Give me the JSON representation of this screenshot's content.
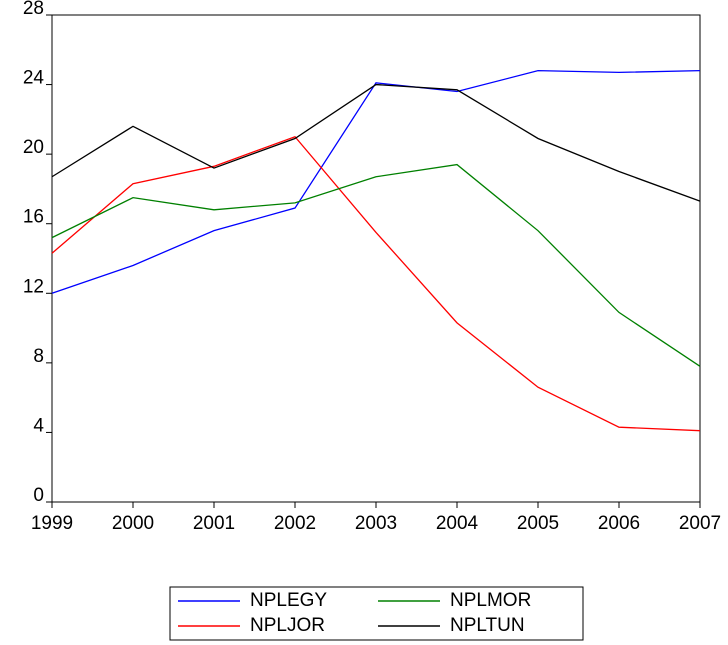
{
  "chart_data": {
    "type": "line",
    "x": [
      1999,
      2000,
      2001,
      2002,
      2003,
      2004,
      2005,
      2006,
      2007
    ],
    "xlim": [
      1999,
      2007
    ],
    "xticks": [
      1999,
      2000,
      2001,
      2002,
      2003,
      2004,
      2005,
      2006,
      2007
    ],
    "ylim": [
      0,
      28
    ],
    "yticks": [
      0,
      4,
      8,
      12,
      16,
      20,
      24,
      28
    ],
    "grid": false,
    "legend": "bottom",
    "series": [
      {
        "name": "NPLEGY",
        "color": "#0000ff",
        "values": [
          12.0,
          13.6,
          15.6,
          16.9,
          24.1,
          23.6,
          24.8,
          24.7,
          24.8
        ]
      },
      {
        "name": "NPLJOR",
        "color": "#ff0000",
        "values": [
          14.3,
          18.3,
          19.3,
          21.0,
          15.5,
          10.3,
          6.6,
          4.3,
          4.1
        ]
      },
      {
        "name": "NPLMOR",
        "color": "#008000",
        "values": [
          15.2,
          17.5,
          16.8,
          17.2,
          18.7,
          19.4,
          15.6,
          10.9,
          7.8
        ]
      },
      {
        "name": "NPLTUN",
        "color": "#000000",
        "values": [
          18.7,
          21.6,
          19.2,
          20.9,
          24.0,
          23.7,
          20.9,
          19.0,
          17.3
        ]
      }
    ]
  }
}
